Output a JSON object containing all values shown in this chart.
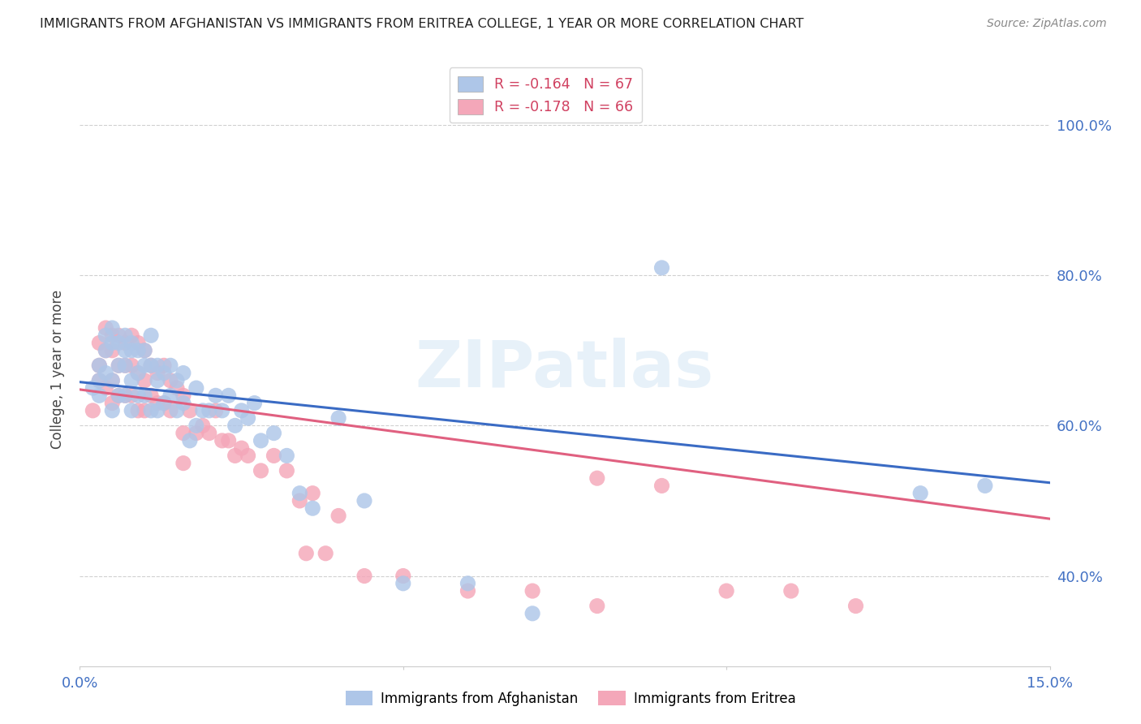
{
  "title": "IMMIGRANTS FROM AFGHANISTAN VS IMMIGRANTS FROM ERITREA COLLEGE, 1 YEAR OR MORE CORRELATION CHART",
  "source": "Source: ZipAtlas.com",
  "ylabel": "College, 1 year or more",
  "xlim": [
    0.0,
    0.15
  ],
  "ylim": [
    0.28,
    1.07
  ],
  "yticks": [
    0.4,
    0.6,
    0.8,
    1.0
  ],
  "ytick_labels": [
    "40.0%",
    "60.0%",
    "80.0%",
    "100.0%"
  ],
  "xticks": [
    0.0,
    0.05,
    0.1,
    0.15
  ],
  "xtick_labels": [
    "0.0%",
    "",
    "",
    "15.0%"
  ],
  "afghanistan_color": "#aec6e8",
  "eritrea_color": "#f4a7b9",
  "afghanistan_line_color": "#3a6bc4",
  "eritrea_line_color": "#e06080",
  "background_color": "#ffffff",
  "grid_color": "#d0d0d0",
  "tick_color": "#4472c4",
  "watermark": "ZIPatlas",
  "afghanistan_R": -0.164,
  "afghanistan_N": 67,
  "eritrea_R": -0.178,
  "eritrea_N": 66,
  "afg_x": [
    0.002,
    0.003,
    0.003,
    0.003,
    0.004,
    0.004,
    0.004,
    0.005,
    0.005,
    0.005,
    0.005,
    0.006,
    0.006,
    0.006,
    0.007,
    0.007,
    0.007,
    0.007,
    0.008,
    0.008,
    0.008,
    0.008,
    0.009,
    0.009,
    0.009,
    0.01,
    0.01,
    0.01,
    0.011,
    0.011,
    0.011,
    0.012,
    0.012,
    0.012,
    0.013,
    0.013,
    0.014,
    0.014,
    0.015,
    0.015,
    0.016,
    0.016,
    0.017,
    0.018,
    0.018,
    0.019,
    0.02,
    0.021,
    0.022,
    0.023,
    0.024,
    0.025,
    0.026,
    0.027,
    0.028,
    0.03,
    0.032,
    0.034,
    0.036,
    0.04,
    0.044,
    0.05,
    0.06,
    0.07,
    0.09,
    0.13,
    0.14
  ],
  "afg_y": [
    0.65,
    0.68,
    0.66,
    0.64,
    0.72,
    0.7,
    0.67,
    0.73,
    0.71,
    0.66,
    0.62,
    0.71,
    0.68,
    0.64,
    0.72,
    0.7,
    0.68,
    0.64,
    0.71,
    0.7,
    0.66,
    0.62,
    0.7,
    0.67,
    0.64,
    0.7,
    0.68,
    0.64,
    0.72,
    0.68,
    0.62,
    0.68,
    0.66,
    0.62,
    0.67,
    0.63,
    0.68,
    0.64,
    0.66,
    0.62,
    0.67,
    0.63,
    0.58,
    0.65,
    0.6,
    0.62,
    0.62,
    0.64,
    0.62,
    0.64,
    0.6,
    0.62,
    0.61,
    0.63,
    0.58,
    0.59,
    0.56,
    0.51,
    0.49,
    0.61,
    0.5,
    0.39,
    0.39,
    0.35,
    0.81,
    0.51,
    0.52
  ],
  "eri_x": [
    0.002,
    0.003,
    0.003,
    0.003,
    0.004,
    0.004,
    0.004,
    0.005,
    0.005,
    0.005,
    0.005,
    0.006,
    0.006,
    0.006,
    0.007,
    0.007,
    0.007,
    0.008,
    0.008,
    0.008,
    0.009,
    0.009,
    0.009,
    0.01,
    0.01,
    0.01,
    0.011,
    0.011,
    0.012,
    0.012,
    0.013,
    0.013,
    0.014,
    0.014,
    0.015,
    0.016,
    0.016,
    0.017,
    0.018,
    0.019,
    0.02,
    0.021,
    0.022,
    0.023,
    0.024,
    0.025,
    0.026,
    0.028,
    0.03,
    0.032,
    0.034,
    0.036,
    0.04,
    0.044,
    0.05,
    0.06,
    0.07,
    0.08,
    0.09,
    0.1,
    0.11,
    0.12,
    0.038,
    0.016,
    0.035,
    0.08
  ],
  "eri_y": [
    0.62,
    0.71,
    0.68,
    0.66,
    0.73,
    0.7,
    0.65,
    0.72,
    0.7,
    0.66,
    0.63,
    0.72,
    0.68,
    0.64,
    0.71,
    0.68,
    0.64,
    0.72,
    0.68,
    0.64,
    0.71,
    0.67,
    0.62,
    0.7,
    0.66,
    0.62,
    0.68,
    0.64,
    0.67,
    0.63,
    0.68,
    0.63,
    0.66,
    0.62,
    0.65,
    0.64,
    0.59,
    0.62,
    0.59,
    0.6,
    0.59,
    0.62,
    0.58,
    0.58,
    0.56,
    0.57,
    0.56,
    0.54,
    0.56,
    0.54,
    0.5,
    0.51,
    0.48,
    0.4,
    0.4,
    0.38,
    0.38,
    0.36,
    0.52,
    0.38,
    0.38,
    0.36,
    0.43,
    0.55,
    0.43,
    0.53
  ],
  "afg_line_x0": 0.0,
  "afg_line_y0": 0.658,
  "afg_line_x1": 0.15,
  "afg_line_y1": 0.524,
  "eri_line_x0": 0.0,
  "eri_line_y0": 0.648,
  "eri_line_x1": 0.15,
  "eri_line_y1": 0.476
}
